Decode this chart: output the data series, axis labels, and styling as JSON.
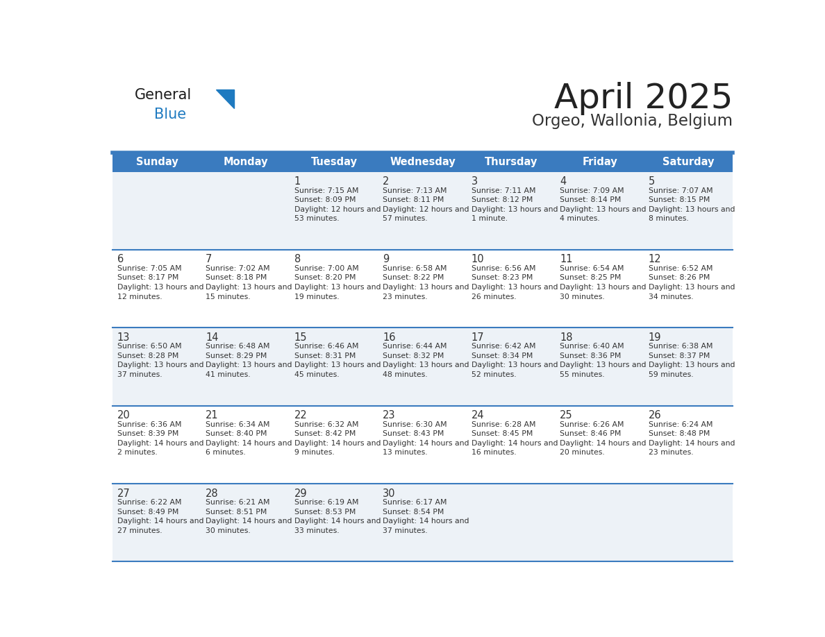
{
  "title": "April 2025",
  "subtitle": "Orgeo, Wallonia, Belgium",
  "days_of_week": [
    "Sunday",
    "Monday",
    "Tuesday",
    "Wednesday",
    "Thursday",
    "Friday",
    "Saturday"
  ],
  "header_bg_color": "#3a7bbf",
  "header_text_color": "#ffffff",
  "row_bg_even": "#edf2f7",
  "row_bg_odd": "#ffffff",
  "divider_color": "#3a7bbf",
  "day_number_color": "#333333",
  "cell_text_color": "#333333",
  "title_color": "#222222",
  "subtitle_color": "#333333",
  "logo_black_color": "#1a1a1a",
  "logo_blue_color": "#1e7ac0",
  "weeks": [
    [
      {
        "day": null,
        "data": null
      },
      {
        "day": null,
        "data": null
      },
      {
        "day": 1,
        "data": {
          "sunrise": "7:15 AM",
          "sunset": "8:09 PM",
          "daylight": "12 hours and 53 minutes."
        }
      },
      {
        "day": 2,
        "data": {
          "sunrise": "7:13 AM",
          "sunset": "8:11 PM",
          "daylight": "12 hours and 57 minutes."
        }
      },
      {
        "day": 3,
        "data": {
          "sunrise": "7:11 AM",
          "sunset": "8:12 PM",
          "daylight": "13 hours and 1 minute."
        }
      },
      {
        "day": 4,
        "data": {
          "sunrise": "7:09 AM",
          "sunset": "8:14 PM",
          "daylight": "13 hours and 4 minutes."
        }
      },
      {
        "day": 5,
        "data": {
          "sunrise": "7:07 AM",
          "sunset": "8:15 PM",
          "daylight": "13 hours and 8 minutes."
        }
      }
    ],
    [
      {
        "day": 6,
        "data": {
          "sunrise": "7:05 AM",
          "sunset": "8:17 PM",
          "daylight": "13 hours and 12 minutes."
        }
      },
      {
        "day": 7,
        "data": {
          "sunrise": "7:02 AM",
          "sunset": "8:18 PM",
          "daylight": "13 hours and 15 minutes."
        }
      },
      {
        "day": 8,
        "data": {
          "sunrise": "7:00 AM",
          "sunset": "8:20 PM",
          "daylight": "13 hours and 19 minutes."
        }
      },
      {
        "day": 9,
        "data": {
          "sunrise": "6:58 AM",
          "sunset": "8:22 PM",
          "daylight": "13 hours and 23 minutes."
        }
      },
      {
        "day": 10,
        "data": {
          "sunrise": "6:56 AM",
          "sunset": "8:23 PM",
          "daylight": "13 hours and 26 minutes."
        }
      },
      {
        "day": 11,
        "data": {
          "sunrise": "6:54 AM",
          "sunset": "8:25 PM",
          "daylight": "13 hours and 30 minutes."
        }
      },
      {
        "day": 12,
        "data": {
          "sunrise": "6:52 AM",
          "sunset": "8:26 PM",
          "daylight": "13 hours and 34 minutes."
        }
      }
    ],
    [
      {
        "day": 13,
        "data": {
          "sunrise": "6:50 AM",
          "sunset": "8:28 PM",
          "daylight": "13 hours and 37 minutes."
        }
      },
      {
        "day": 14,
        "data": {
          "sunrise": "6:48 AM",
          "sunset": "8:29 PM",
          "daylight": "13 hours and 41 minutes."
        }
      },
      {
        "day": 15,
        "data": {
          "sunrise": "6:46 AM",
          "sunset": "8:31 PM",
          "daylight": "13 hours and 45 minutes."
        }
      },
      {
        "day": 16,
        "data": {
          "sunrise": "6:44 AM",
          "sunset": "8:32 PM",
          "daylight": "13 hours and 48 minutes."
        }
      },
      {
        "day": 17,
        "data": {
          "sunrise": "6:42 AM",
          "sunset": "8:34 PM",
          "daylight": "13 hours and 52 minutes."
        }
      },
      {
        "day": 18,
        "data": {
          "sunrise": "6:40 AM",
          "sunset": "8:36 PM",
          "daylight": "13 hours and 55 minutes."
        }
      },
      {
        "day": 19,
        "data": {
          "sunrise": "6:38 AM",
          "sunset": "8:37 PM",
          "daylight": "13 hours and 59 minutes."
        }
      }
    ],
    [
      {
        "day": 20,
        "data": {
          "sunrise": "6:36 AM",
          "sunset": "8:39 PM",
          "daylight": "14 hours and 2 minutes."
        }
      },
      {
        "day": 21,
        "data": {
          "sunrise": "6:34 AM",
          "sunset": "8:40 PM",
          "daylight": "14 hours and 6 minutes."
        }
      },
      {
        "day": 22,
        "data": {
          "sunrise": "6:32 AM",
          "sunset": "8:42 PM",
          "daylight": "14 hours and 9 minutes."
        }
      },
      {
        "day": 23,
        "data": {
          "sunrise": "6:30 AM",
          "sunset": "8:43 PM",
          "daylight": "14 hours and 13 minutes."
        }
      },
      {
        "day": 24,
        "data": {
          "sunrise": "6:28 AM",
          "sunset": "8:45 PM",
          "daylight": "14 hours and 16 minutes."
        }
      },
      {
        "day": 25,
        "data": {
          "sunrise": "6:26 AM",
          "sunset": "8:46 PM",
          "daylight": "14 hours and 20 minutes."
        }
      },
      {
        "day": 26,
        "data": {
          "sunrise": "6:24 AM",
          "sunset": "8:48 PM",
          "daylight": "14 hours and 23 minutes."
        }
      }
    ],
    [
      {
        "day": 27,
        "data": {
          "sunrise": "6:22 AM",
          "sunset": "8:49 PM",
          "daylight": "14 hours and 27 minutes."
        }
      },
      {
        "day": 28,
        "data": {
          "sunrise": "6:21 AM",
          "sunset": "8:51 PM",
          "daylight": "14 hours and 30 minutes."
        }
      },
      {
        "day": 29,
        "data": {
          "sunrise": "6:19 AM",
          "sunset": "8:53 PM",
          "daylight": "14 hours and 33 minutes."
        }
      },
      {
        "day": 30,
        "data": {
          "sunrise": "6:17 AM",
          "sunset": "8:54 PM",
          "daylight": "14 hours and 37 minutes."
        }
      },
      {
        "day": null,
        "data": null
      },
      {
        "day": null,
        "data": null
      },
      {
        "day": null,
        "data": null
      }
    ]
  ]
}
